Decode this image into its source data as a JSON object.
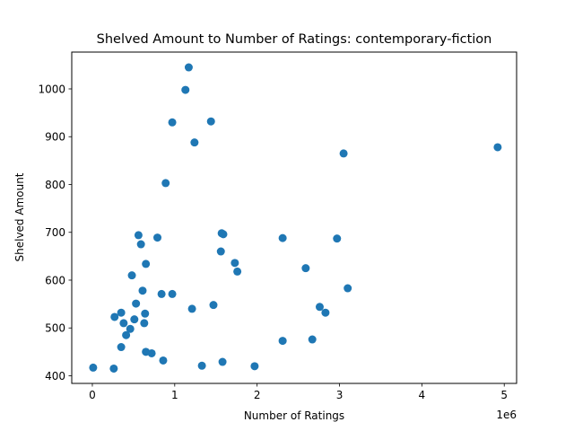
{
  "chart_data": {
    "type": "scatter",
    "title": "Shelved Amount to Number of Ratings: contemporary-fiction",
    "xlabel": "Number of Ratings",
    "ylabel": "Shelved Amount",
    "x_offset_label": "1e6",
    "xlim": [
      -0.25,
      5.15
    ],
    "ylim": [
      384,
      1077
    ],
    "x_scale_multiplier": 1000000,
    "xticks": [
      0,
      1,
      2,
      3,
      4,
      5
    ],
    "yticks": [
      400,
      500,
      600,
      700,
      800,
      900,
      1000
    ],
    "grid": false,
    "marker_color": "#1f77b4",
    "series": [
      {
        "x": [
          0.01,
          0.26,
          0.27,
          0.35,
          0.35,
          0.38,
          0.41,
          0.46,
          0.48,
          0.51,
          0.53,
          0.56,
          0.59,
          0.61,
          0.63,
          0.64,
          0.65,
          0.65,
          0.72,
          0.79,
          0.84,
          0.86,
          0.89,
          0.97,
          0.97,
          1.13,
          1.17,
          1.21,
          1.24,
          1.33,
          1.44,
          1.47,
          1.56,
          1.57,
          1.58,
          1.59,
          1.73,
          1.76,
          1.97,
          2.31,
          2.31,
          2.59,
          2.67,
          2.76,
          2.83,
          2.97,
          3.05,
          3.1,
          4.92
        ],
        "y": [
          417,
          415,
          523,
          460,
          532,
          510,
          485,
          498,
          610,
          518,
          551,
          694,
          675,
          578,
          510,
          530,
          450,
          634,
          447,
          689,
          571,
          432,
          803,
          930,
          571,
          998,
          1045,
          540,
          888,
          421,
          932,
          548,
          660,
          698,
          429,
          696,
          636,
          618,
          420,
          688,
          473,
          625,
          476,
          544,
          532,
          687,
          865,
          583,
          878
        ]
      }
    ]
  }
}
